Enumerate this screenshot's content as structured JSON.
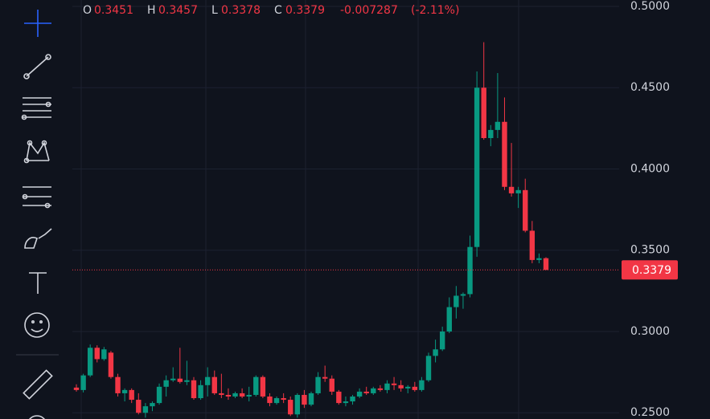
{
  "chart_data": {
    "type": "candlestick",
    "open": [
      0.2655,
      0.264,
      0.273,
      0.29,
      0.283,
      0.287,
      0.272,
      0.262,
      0.264,
      0.258,
      0.25,
      0.254,
      0.256,
      0.266,
      0.27,
      0.271,
      0.269,
      0.27,
      0.259,
      0.267,
      0.272,
      0.262,
      0.261,
      0.26,
      0.262,
      0.26,
      0.261,
      0.272,
      0.26,
      0.256,
      0.259,
      0.258,
      0.249,
      0.261,
      0.255,
      0.262,
      0.272,
      0.271,
      0.263,
      0.256,
      0.257,
      0.26,
      0.263,
      0.262,
      0.265,
      0.264,
      0.268,
      0.267,
      0.265,
      0.266,
      0.264,
      0.27,
      0.285,
      0.289,
      0.3,
      0.315,
      0.322,
      0.323,
      0.352,
      0.45,
      0.419,
      0.424,
      0.429,
      0.389,
      0.385,
      0.387,
      0.362,
      0.344,
      0.3451
    ],
    "high": [
      0.2675,
      0.274,
      0.292,
      0.2915,
      0.2905,
      0.288,
      0.274,
      0.265,
      0.265,
      0.262,
      0.256,
      0.257,
      0.268,
      0.273,
      0.278,
      0.29,
      0.282,
      0.272,
      0.27,
      0.278,
      0.276,
      0.274,
      0.265,
      0.263,
      0.265,
      0.266,
      0.273,
      0.273,
      0.262,
      0.26,
      0.262,
      0.26,
      0.262,
      0.264,
      0.263,
      0.275,
      0.279,
      0.273,
      0.264,
      0.26,
      0.261,
      0.265,
      0.266,
      0.266,
      0.267,
      0.27,
      0.272,
      0.27,
      0.267,
      0.269,
      0.272,
      0.287,
      0.295,
      0.303,
      0.321,
      0.328,
      0.324,
      0.359,
      0.46,
      0.478,
      0.427,
      0.459,
      0.444,
      0.416,
      0.389,
      0.394,
      0.368,
      0.348,
      0.3457
    ],
    "low": [
      0.263,
      0.2625,
      0.272,
      0.281,
      0.282,
      0.271,
      0.26,
      0.257,
      0.256,
      0.249,
      0.247,
      0.251,
      0.255,
      0.26,
      0.269,
      0.268,
      0.267,
      0.258,
      0.258,
      0.26,
      0.261,
      0.259,
      0.258,
      0.259,
      0.259,
      0.257,
      0.26,
      0.259,
      0.254,
      0.255,
      0.256,
      0.248,
      0.247,
      0.253,
      0.254,
      0.261,
      0.269,
      0.261,
      0.255,
      0.254,
      0.255,
      0.259,
      0.261,
      0.261,
      0.263,
      0.262,
      0.264,
      0.263,
      0.262,
      0.263,
      0.263,
      0.269,
      0.281,
      0.288,
      0.299,
      0.308,
      0.314,
      0.321,
      0.346,
      0.418,
      0.414,
      0.419,
      0.387,
      0.383,
      0.376,
      0.361,
      0.342,
      0.342,
      0.3378
    ],
    "close": [
      0.264,
      0.273,
      0.29,
      0.283,
      0.289,
      0.272,
      0.262,
      0.264,
      0.258,
      0.25,
      0.254,
      0.256,
      0.266,
      0.27,
      0.271,
      0.269,
      0.27,
      0.259,
      0.267,
      0.272,
      0.262,
      0.261,
      0.26,
      0.262,
      0.26,
      0.261,
      0.272,
      0.26,
      0.256,
      0.259,
      0.258,
      0.249,
      0.261,
      0.255,
      0.262,
      0.272,
      0.271,
      0.263,
      0.256,
      0.257,
      0.26,
      0.263,
      0.262,
      0.265,
      0.264,
      0.268,
      0.267,
      0.265,
      0.266,
      0.264,
      0.27,
      0.285,
      0.289,
      0.3,
      0.315,
      0.322,
      0.323,
      0.352,
      0.45,
      0.419,
      0.424,
      0.429,
      0.389,
      0.385,
      0.387,
      0.362,
      0.344,
      0.3451,
      0.3379
    ],
    "up_color": "#089981",
    "down_color": "#f23645",
    "ohlc_labels": [
      "O",
      "H",
      "L",
      "C"
    ],
    "change": "-0.007287",
    "change_percent": "(-2.11%)",
    "ylim": [
      0.24617,
      0.50395
    ],
    "yticks": [
      {
        "value": 0.25,
        "label": "0.2500"
      },
      {
        "value": 0.3,
        "label": "0.3000"
      },
      {
        "value": 0.35,
        "label": "0.3500"
      },
      {
        "value": 0.4,
        "label": "0.4000"
      },
      {
        "value": 0.45,
        "label": "0.4500"
      },
      {
        "value": 0.5,
        "label": "0.5000"
      }
    ],
    "grid": true
  }
}
